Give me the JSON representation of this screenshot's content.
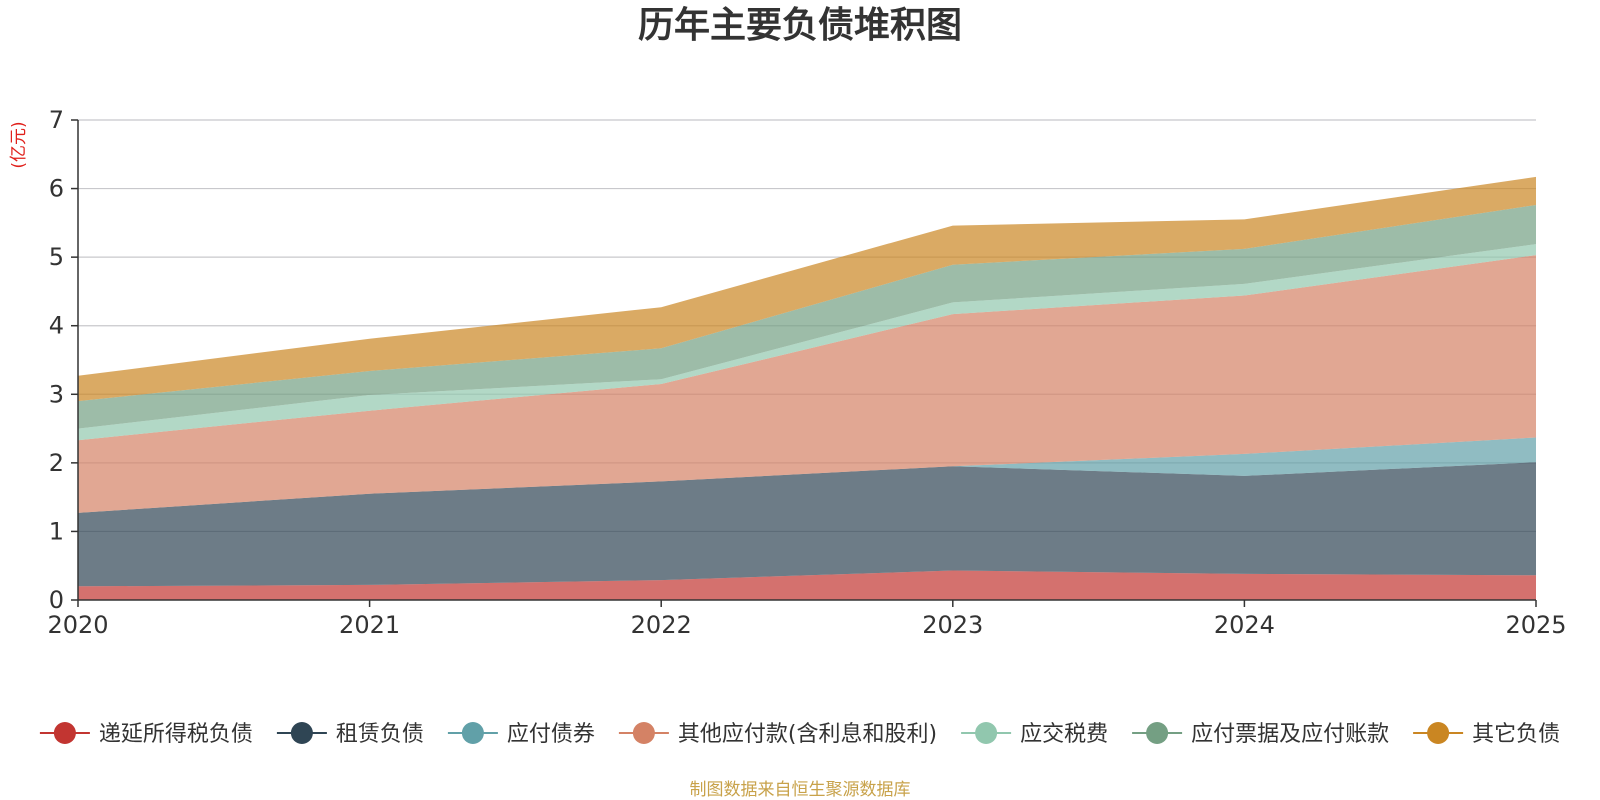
{
  "chart_data": {
    "type": "area",
    "stacked": true,
    "title": "历年主要负债堆积图",
    "unit_label": "(亿元)",
    "source_note": "制图数据来自恒生聚源数据库",
    "x": [
      "2020",
      "2021",
      "2022",
      "2023",
      "2024",
      "2025"
    ],
    "ylim": [
      0,
      7
    ],
    "yticks": [
      "0",
      "1",
      "2",
      "3",
      "4",
      "5",
      "6",
      "7"
    ],
    "grid": true,
    "legend_position": "bottom",
    "series": [
      {
        "name": "递延所得税负债",
        "color": "#c23531",
        "values": [
          0.2,
          0.22,
          0.29,
          0.43,
          0.38,
          0.36
        ]
      },
      {
        "name": "租赁负债",
        "color": "#2f4554",
        "values": [
          1.07,
          1.33,
          1.44,
          1.52,
          1.43,
          1.65
        ]
      },
      {
        "name": "应付债券",
        "color": "#61a0a8",
        "values": [
          0.0,
          0.0,
          0.0,
          0.0,
          0.32,
          0.36
        ]
      },
      {
        "name": "其他应付款(含利息和股利)",
        "color": "#d48265",
        "values": [
          1.06,
          1.21,
          1.42,
          2.22,
          2.31,
          2.66
        ]
      },
      {
        "name": "应交税费",
        "color": "#91c7ae",
        "values": [
          0.17,
          0.23,
          0.07,
          0.17,
          0.17,
          0.16
        ]
      },
      {
        "name": "应付票据及应付账款",
        "color": "#749f83",
        "values": [
          0.4,
          0.35,
          0.45,
          0.55,
          0.51,
          0.57
        ]
      },
      {
        "name": "其它负债",
        "color": "#ca8622",
        "values": [
          0.37,
          0.47,
          0.6,
          0.57,
          0.43,
          0.41
        ]
      }
    ],
    "colors": {
      "title": "#333333",
      "unit": "#e0201b",
      "source": "#c8a24a",
      "grid": "#c8c8cc",
      "axis": "#333333"
    }
  }
}
